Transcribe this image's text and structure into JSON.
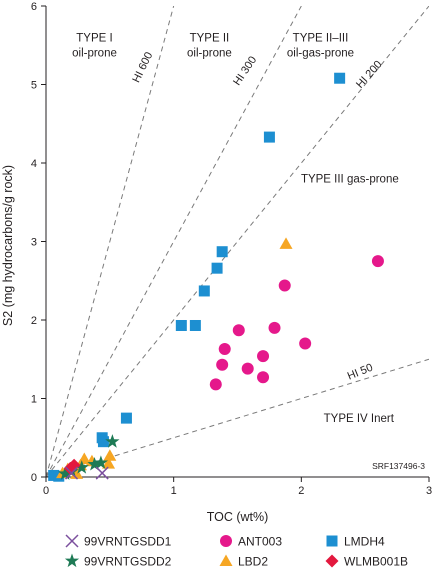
{
  "chart_data": {
    "type": "scatter",
    "xlabel": "TOC (wt%)",
    "ylabel": "S2 (mg hydrocarbons/g rock)",
    "xlim": [
      0,
      3
    ],
    "ylim": [
      0,
      6
    ],
    "x_ticks": [
      0,
      1,
      2,
      3
    ],
    "y_ticks": [
      0,
      1,
      2,
      3,
      4,
      5,
      6
    ],
    "grid": false,
    "legend_position": "bottom",
    "reference_lines": [
      {
        "label": "HI 600",
        "slope": 6
      },
      {
        "label": "HI 300",
        "slope": 3
      },
      {
        "label": "HI 200",
        "slope": 2
      },
      {
        "label": "HI 50",
        "slope": 0.5
      }
    ],
    "zone_labels": [
      {
        "line1": "TYPE I",
        "line2": "oil-prone"
      },
      {
        "line1": "TYPE II",
        "line2": "oil-prone"
      },
      {
        "line1": "TYPE II–III",
        "line2": "oil-gas-prone"
      },
      {
        "line1": "TYPE III gas-prone",
        "line2": ""
      },
      {
        "line1": "TYPE IV Inert",
        "line2": ""
      }
    ],
    "figure_id": "SRF137496-3",
    "series": [
      {
        "name": "99VRNTGSDD1",
        "marker": "x",
        "color": "#7b4f9e",
        "points": [
          [
            0.44,
            0.05
          ],
          [
            0.2,
            0.05
          ]
        ]
      },
      {
        "name": "99VRNTGSDD2",
        "marker": "star",
        "color": "#1e7a55",
        "points": [
          [
            0.52,
            0.45
          ],
          [
            0.43,
            0.18
          ],
          [
            0.38,
            0.16
          ],
          [
            0.28,
            0.12
          ],
          [
            0.2,
            0.07
          ],
          [
            0.15,
            0.04
          ]
        ]
      },
      {
        "name": "ANT003",
        "marker": "circle",
        "color": "#e5188b",
        "points": [
          [
            2.6,
            2.75
          ],
          [
            1.87,
            2.44
          ],
          [
            1.51,
            1.87
          ],
          [
            1.79,
            1.9
          ],
          [
            1.4,
            1.63
          ],
          [
            2.03,
            1.7
          ],
          [
            1.58,
            1.38
          ],
          [
            1.7,
            1.54
          ],
          [
            1.38,
            1.43
          ],
          [
            1.7,
            1.27
          ],
          [
            1.33,
            1.18
          ]
        ]
      },
      {
        "name": "LBD2",
        "marker": "triangle",
        "color": "#f6a623",
        "points": [
          [
            1.88,
            2.97
          ],
          [
            0.5,
            0.27
          ],
          [
            0.3,
            0.23
          ],
          [
            0.36,
            0.2
          ],
          [
            0.49,
            0.17
          ],
          [
            0.27,
            0.15
          ],
          [
            0.17,
            0.1
          ],
          [
            0.21,
            0.09
          ],
          [
            0.13,
            0.05
          ],
          [
            0.24,
            0.04
          ]
        ]
      },
      {
        "name": "LMDH4",
        "marker": "square",
        "color": "#1d8fd1",
        "points": [
          [
            2.3,
            5.08
          ],
          [
            1.75,
            4.33
          ],
          [
            1.38,
            2.87
          ],
          [
            1.34,
            2.66
          ],
          [
            1.24,
            2.37
          ],
          [
            1.06,
            1.93
          ],
          [
            1.17,
            1.93
          ],
          [
            0.63,
            0.75
          ],
          [
            0.44,
            0.5
          ],
          [
            0.45,
            0.45
          ],
          [
            0.06,
            0.02
          ],
          [
            0.1,
            0.01
          ]
        ]
      },
      {
        "name": "WLMB001B",
        "marker": "diamond",
        "color": "#e3183e",
        "points": [
          [
            0.22,
            0.15
          ],
          [
            0.19,
            0.11
          ]
        ]
      }
    ]
  }
}
